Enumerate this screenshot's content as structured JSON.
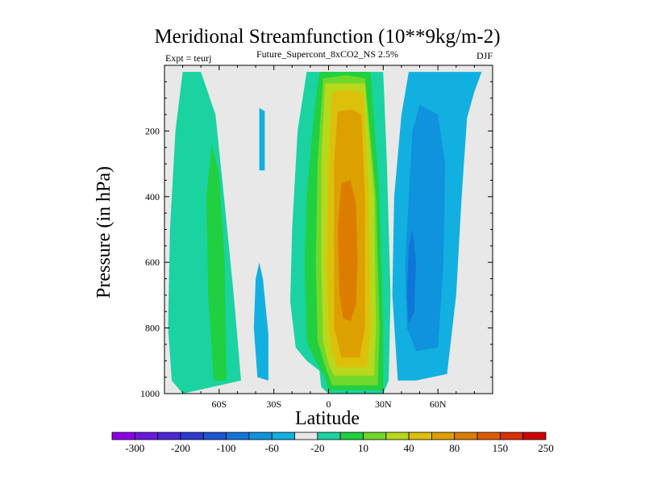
{
  "chart_data": {
    "type": "contour",
    "title": "Meridional Streamfunction (10**9kg/m-2)",
    "subtitle": "Future_Supercont_8xCO2_NS 2.5%",
    "left_label": "Expt = teurj",
    "right_label": "DJF",
    "xlabel": "Latitude",
    "ylabel": "Pressure (in hPa)",
    "x_range": [
      -90,
      90
    ],
    "y_range": [
      0,
      1000
    ],
    "y_inverted": true,
    "background": "#e8e8e8",
    "x_ticks": [
      {
        "value": -60,
        "label": "60S"
      },
      {
        "value": -30,
        "label": "30S"
      },
      {
        "value": 0,
        "label": "0"
      },
      {
        "value": 30,
        "label": "30N"
      },
      {
        "value": 60,
        "label": "60N"
      }
    ],
    "y_ticks": [
      {
        "value": 200,
        "label": "200"
      },
      {
        "value": 400,
        "label": "400"
      },
      {
        "value": 600,
        "label": "600"
      },
      {
        "value": 800,
        "label": "800"
      },
      {
        "value": 1000,
        "label": "1000"
      }
    ],
    "colorbar": {
      "colors": [
        "#8c00e6",
        "#6a19e0",
        "#4b28d6",
        "#2f3ad0",
        "#1e56d2",
        "#1075d8",
        "#0f93dc",
        "#12b0e0",
        "#e8e8e8",
        "#1ad3a0",
        "#20d040",
        "#70d82a",
        "#b8d81c",
        "#dcc00a",
        "#dca000",
        "#dc7d00",
        "#dc5a00",
        "#d83000",
        "#d00000"
      ],
      "labels": [
        {
          "after_index": 0,
          "text": "-300"
        },
        {
          "after_index": 2,
          "text": "-200"
        },
        {
          "after_index": 4,
          "text": "-100"
        },
        {
          "after_index": 6,
          "text": "-60"
        },
        {
          "after_index": 8,
          "text": "-20"
        },
        {
          "after_index": 10,
          "text": "10"
        },
        {
          "after_index": 12,
          "text": "40"
        },
        {
          "after_index": 14,
          "text": "80"
        },
        {
          "after_index": 16,
          "text": "150"
        },
        {
          "after_index": 18,
          "text": "250"
        }
      ]
    },
    "regions": [
      {
        "name": "sh-positive-cell",
        "color": "#1ad3a0",
        "points": [
          [
            -80,
            20
          ],
          [
            -70,
            20
          ],
          [
            -62,
            150
          ],
          [
            -57,
            420
          ],
          [
            -52,
            700
          ],
          [
            -48,
            960
          ],
          [
            -80,
            1000
          ],
          [
            -86,
            960
          ],
          [
            -88,
            800
          ],
          [
            -87,
            500
          ],
          [
            -84,
            200
          ]
        ]
      },
      {
        "name": "sh-inner-core",
        "color": "#20d040",
        "points": [
          [
            -64,
            240
          ],
          [
            -60,
            330
          ],
          [
            -57,
            600
          ],
          [
            -56,
            960
          ],
          [
            -63,
            960
          ],
          [
            -66,
            700
          ],
          [
            -67,
            400
          ]
        ]
      },
      {
        "name": "sh-small-negative-upper",
        "color": "#12b0e0",
        "points": [
          [
            -38,
            130
          ],
          [
            -35,
            140
          ],
          [
            -35,
            320
          ],
          [
            -38,
            320
          ]
        ]
      },
      {
        "name": "sh-small-negative-lower",
        "color": "#12b0e0",
        "points": [
          [
            -38,
            600
          ],
          [
            -36,
            650
          ],
          [
            -33,
            820
          ],
          [
            -33,
            960
          ],
          [
            -39,
            950
          ],
          [
            -41,
            800
          ],
          [
            -40,
            650
          ]
        ]
      },
      {
        "name": "main-cell-level1",
        "color": "#1ad3a0",
        "points": [
          [
            -12,
            20
          ],
          [
            -5,
            20
          ],
          [
            10,
            20
          ],
          [
            22,
            20
          ],
          [
            30,
            20
          ],
          [
            32,
            300
          ],
          [
            34,
            700
          ],
          [
            33,
            960
          ],
          [
            30,
            1000
          ],
          [
            0,
            1000
          ],
          [
            -4,
            980
          ],
          [
            -5,
            930
          ],
          [
            -12,
            900
          ],
          [
            -18,
            860
          ],
          [
            -21,
            720
          ],
          [
            -20,
            500
          ],
          [
            -17,
            200
          ]
        ]
      },
      {
        "name": "main-cell-level2",
        "color": "#20d040",
        "points": [
          [
            -5,
            20
          ],
          [
            5,
            20
          ],
          [
            15,
            20
          ],
          [
            23,
            20
          ],
          [
            28,
            400
          ],
          [
            30,
            800
          ],
          [
            30,
            990
          ],
          [
            0,
            990
          ],
          [
            -2,
            950
          ],
          [
            -8,
            890
          ],
          [
            -12,
            840
          ],
          [
            -13,
            600
          ],
          [
            -12,
            400
          ],
          [
            -8,
            150
          ]
        ]
      },
      {
        "name": "main-cell-level3",
        "color": "#70d82a",
        "points": [
          [
            -3,
            40
          ],
          [
            10,
            30
          ],
          [
            20,
            40
          ],
          [
            26,
            400
          ],
          [
            28,
            800
          ],
          [
            27,
            975
          ],
          [
            2,
            975
          ],
          [
            -1,
            930
          ],
          [
            -6,
            840
          ],
          [
            -7,
            600
          ],
          [
            -6,
            300
          ]
        ]
      },
      {
        "name": "main-cell-level4",
        "color": "#b8d81c",
        "points": [
          [
            -2,
            55
          ],
          [
            10,
            55
          ],
          [
            20,
            55
          ],
          [
            25,
            400
          ],
          [
            26,
            800
          ],
          [
            25,
            945
          ],
          [
            3,
            945
          ],
          [
            0,
            910
          ],
          [
            -3,
            840
          ],
          [
            -4,
            600
          ],
          [
            -4,
            300
          ]
        ]
      },
      {
        "name": "main-cell-level5",
        "color": "#dcc00a",
        "points": [
          [
            2,
            80
          ],
          [
            12,
            75
          ],
          [
            19,
            85
          ],
          [
            22,
            400
          ],
          [
            23,
            800
          ],
          [
            21,
            920
          ],
          [
            5,
            920
          ],
          [
            2,
            880
          ],
          [
            0,
            800
          ],
          [
            -1,
            600
          ],
          [
            0,
            300
          ]
        ]
      },
      {
        "name": "main-cell-level6",
        "color": "#dca000",
        "points": [
          [
            5,
            140
          ],
          [
            13,
            135
          ],
          [
            18,
            150
          ],
          [
            20,
            400
          ],
          [
            20,
            800
          ],
          [
            17,
            890
          ],
          [
            7,
            890
          ],
          [
            5,
            840
          ],
          [
            3,
            800
          ],
          [
            3,
            500
          ],
          [
            3,
            300
          ]
        ]
      },
      {
        "name": "main-cell-level7",
        "color": "#dc7d00",
        "points": [
          [
            7,
            360
          ],
          [
            12,
            350
          ],
          [
            15,
            420
          ],
          [
            16,
            600
          ],
          [
            15,
            730
          ],
          [
            12,
            780
          ],
          [
            8,
            770
          ],
          [
            6,
            700
          ],
          [
            5,
            500
          ]
        ]
      },
      {
        "name": "nh-negative-cell",
        "color": "#12b0e0",
        "points": [
          [
            44,
            20
          ],
          [
            56,
            20
          ],
          [
            76,
            20
          ],
          [
            84,
            20
          ],
          [
            80,
            80
          ],
          [
            76,
            160
          ],
          [
            73,
            400
          ],
          [
            70,
            700
          ],
          [
            65,
            940
          ],
          [
            48,
            960
          ],
          [
            38,
            960
          ],
          [
            35,
            700
          ],
          [
            36,
            400
          ],
          [
            40,
            150
          ]
        ]
      },
      {
        "name": "nh-negative-core1",
        "color": "#0f93dc",
        "points": [
          [
            50,
            120
          ],
          [
            60,
            150
          ],
          [
            64,
            300
          ],
          [
            63,
            600
          ],
          [
            60,
            860
          ],
          [
            48,
            870
          ],
          [
            43,
            800
          ],
          [
            42,
            600
          ],
          [
            44,
            400
          ],
          [
            46,
            200
          ]
        ]
      },
      {
        "name": "nh-negative-core2",
        "color": "#1075d8",
        "points": [
          [
            46,
            500
          ],
          [
            48,
            600
          ],
          [
            47,
            750
          ],
          [
            44,
            790
          ],
          [
            43,
            700
          ],
          [
            44,
            550
          ]
        ]
      }
    ]
  }
}
